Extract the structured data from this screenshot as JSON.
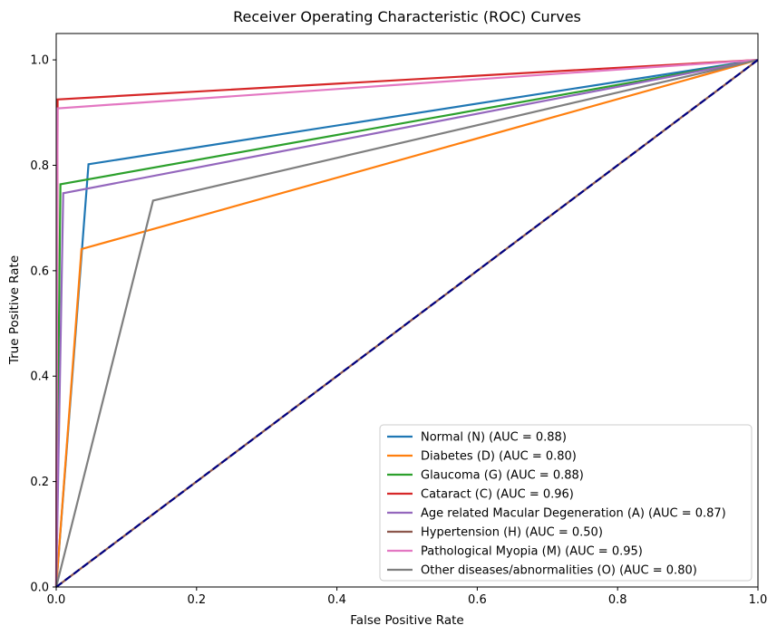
{
  "chart_data": {
    "type": "line",
    "title": "Receiver Operating Characteristic (ROC) Curves",
    "xlabel": "False Positive Rate",
    "ylabel": "True Positive Rate",
    "xlim": [
      0.0,
      1.0
    ],
    "ylim": [
      0.0,
      1.05
    ],
    "xticks": [
      0.0,
      0.2,
      0.4,
      0.6,
      0.8,
      1.0
    ],
    "yticks": [
      0.0,
      0.2,
      0.4,
      0.6,
      0.8,
      1.0
    ],
    "xtick_labels": [
      "0.0",
      "0.2",
      "0.4",
      "0.6",
      "0.8",
      "1.0"
    ],
    "ytick_labels": [
      "0.0",
      "0.2",
      "0.4",
      "0.6",
      "0.8",
      "1.0"
    ],
    "grid": false,
    "legend_position": "bottom-right",
    "series": [
      {
        "name": "Normal (N) (AUC = 0.88)",
        "color": "#1f77b4",
        "x": [
          0.0,
          0.046,
          1.0
        ],
        "y": [
          0.0,
          0.802,
          1.0
        ]
      },
      {
        "name": "Diabetes (D) (AUC = 0.80)",
        "color": "#ff7f0e",
        "x": [
          0.0,
          0.036,
          1.0
        ],
        "y": [
          0.0,
          0.641,
          1.0
        ]
      },
      {
        "name": "Glaucoma (G) (AUC = 0.88)",
        "color": "#2ca02c",
        "x": [
          0.0,
          0.006,
          1.0
        ],
        "y": [
          0.0,
          0.764,
          1.0
        ]
      },
      {
        "name": "Cataract (C) (AUC = 0.96)",
        "color": "#d62728",
        "x": [
          0.0,
          0.002,
          1.0
        ],
        "y": [
          0.0,
          0.925,
          1.0
        ]
      },
      {
        "name": "Age related Macular Degeneration (A) (AUC = 0.87)",
        "color": "#9467bd",
        "x": [
          0.0,
          0.01,
          1.0
        ],
        "y": [
          0.0,
          0.747,
          1.0
        ]
      },
      {
        "name": "Hypertension (H) (AUC = 0.50)",
        "color": "#8c564b",
        "x": [
          0.0,
          1.0
        ],
        "y": [
          0.0,
          1.0
        ]
      },
      {
        "name": "Pathological Myopia (M) (AUC = 0.95)",
        "color": "#e377c2",
        "x": [
          0.0,
          0.002,
          1.0
        ],
        "y": [
          0.0,
          0.908,
          1.0
        ]
      },
      {
        "name": "Other diseases/abnormalities (O) (AUC = 0.80)",
        "color": "#7f7f7f",
        "x": [
          0.0,
          0.138,
          1.0
        ],
        "y": [
          0.0,
          0.733,
          1.0
        ]
      }
    ],
    "reference_line": {
      "x": [
        0.0,
        1.0
      ],
      "y": [
        0.0,
        1.0
      ],
      "color": "#000080",
      "style": "dashed"
    }
  }
}
